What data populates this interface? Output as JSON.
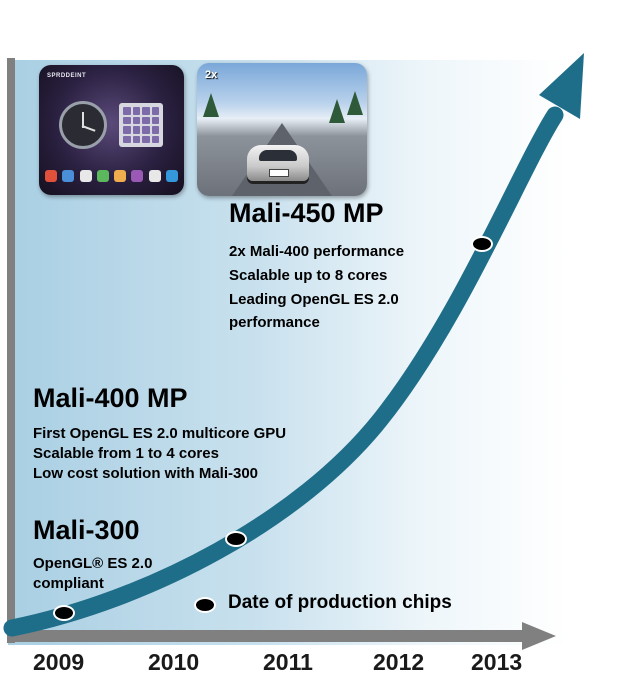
{
  "milestones": [
    {
      "title": "Mali-300",
      "bullets": [
        "OpenGL® ES 2.0",
        "compliant"
      ],
      "year_marker": "2009"
    },
    {
      "title": "Mali-400 MP",
      "bullets": [
        "First OpenGL ES 2.0 multicore GPU",
        "Scalable  from 1 to 4 cores",
        "Low cost solution with Mali-300"
      ]
    },
    {
      "title": "Mali-450 MP",
      "bullets": [
        "2x Mali-400 performance",
        "Scalable up to 8 cores",
        "Leading OpenGL ES 2.0",
        "performance"
      ]
    }
  ],
  "legend": {
    "label": "Date of production chips"
  },
  "timeline": {
    "years": [
      "2009",
      "2010",
      "2011",
      "2012",
      "2013"
    ]
  },
  "thumbnails": {
    "desktop_brand": "SPRDDEINT",
    "game_hud": "2x"
  },
  "colors": {
    "curve": "#1f6e89",
    "axis": "#808080",
    "dot": "#000000"
  }
}
